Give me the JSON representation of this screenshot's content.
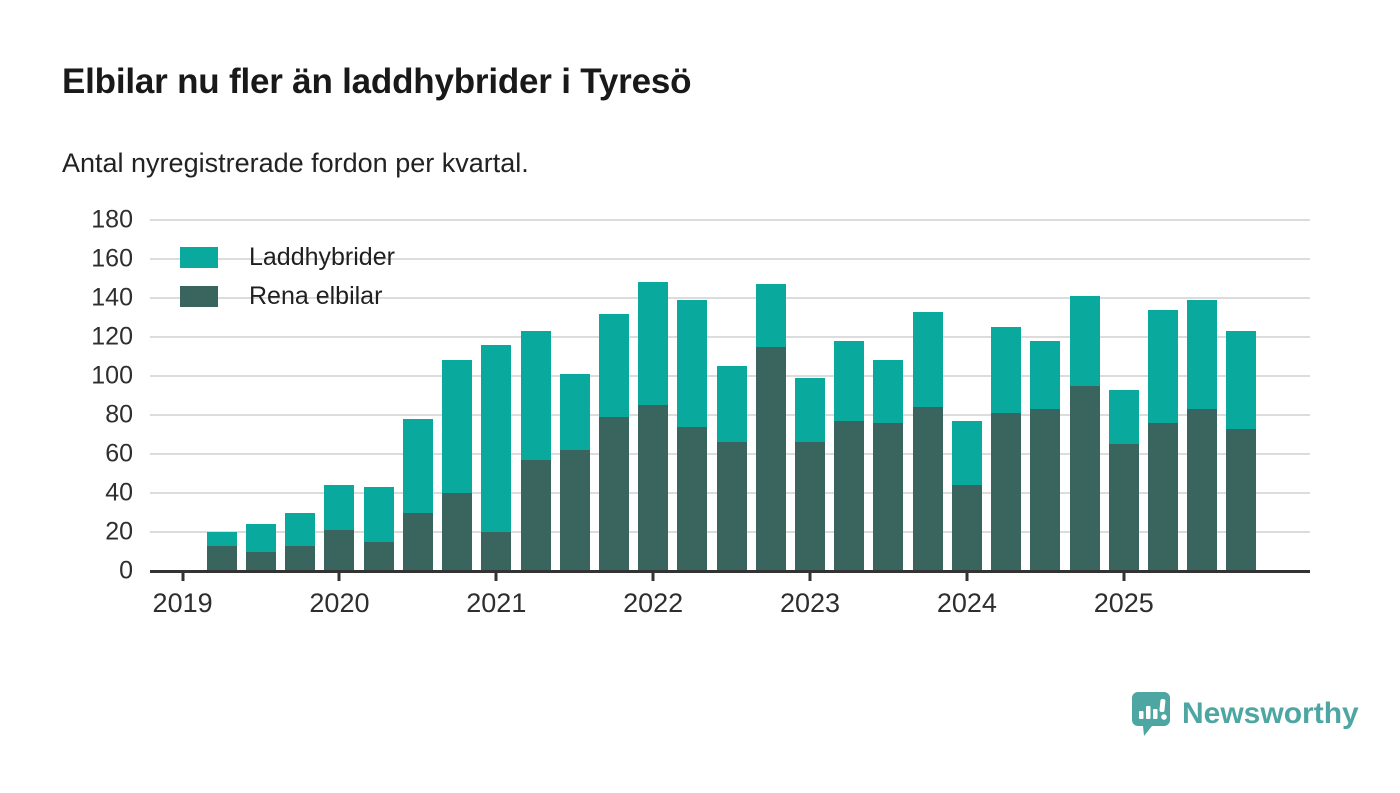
{
  "title": "Elbilar nu fler än laddhybrider i Tyresö",
  "subtitle": "Antal nyregistrerade fordon per kvartal.",
  "colors": {
    "laddhybrider": "#0aa99d",
    "rena_elbilar": "#3a655f",
    "gridline": "#dcdcdc",
    "axis": "#333333",
    "brand_teal": "#4da6a2"
  },
  "legend": [
    {
      "label": "Laddhybrider",
      "color": "#0aa99d"
    },
    {
      "label": "Rena elbilar",
      "color": "#3a655f"
    }
  ],
  "branding": {
    "name": "Newsworthy",
    "icon": "newsworthy-speech-bubble-chart-icon"
  },
  "chart_data": {
    "type": "bar",
    "stacked": true,
    "title": "Elbilar nu fler än laddhybrider i Tyresö",
    "subtitle": "Antal nyregistrerade fordon per kvartal.",
    "ylim": [
      0,
      180
    ],
    "yticks": [
      0,
      20,
      40,
      60,
      80,
      100,
      120,
      140,
      160,
      180
    ],
    "grid": true,
    "legend_position": "top-left-inside",
    "x_unit": "quarter",
    "year_ticks": [
      "2019",
      "2020",
      "2021",
      "2022",
      "2023",
      "2024",
      "2025"
    ],
    "first_quarter": "2019-Q2",
    "categories": [
      "2019-Q2",
      "2019-Q3",
      "2019-Q4",
      "2020-Q1",
      "2020-Q2",
      "2020-Q3",
      "2020-Q4",
      "2021-Q1",
      "2021-Q2",
      "2021-Q3",
      "2021-Q4",
      "2022-Q1",
      "2022-Q2",
      "2022-Q3",
      "2022-Q4",
      "2023-Q1",
      "2023-Q2",
      "2023-Q3",
      "2023-Q4",
      "2024-Q1",
      "2024-Q2",
      "2024-Q3",
      "2024-Q4",
      "2025-Q1",
      "2025-Q2",
      "2025-Q3",
      "2025-Q4"
    ],
    "series": [
      {
        "name": "Laddhybrider",
        "color": "#0aa99d",
        "stack_position": "top",
        "values": [
          7,
          14,
          17,
          23,
          28,
          48,
          68,
          96,
          66,
          39,
          53,
          63,
          65,
          39,
          32,
          33,
          41,
          32,
          49,
          33,
          44,
          35,
          46,
          28,
          58,
          56,
          50
        ]
      },
      {
        "name": "Rena elbilar",
        "color": "#3a655f",
        "stack_position": "bottom",
        "values": [
          13,
          10,
          13,
          21,
          15,
          30,
          40,
          20,
          57,
          62,
          79,
          85,
          74,
          66,
          115,
          66,
          77,
          76,
          84,
          44,
          81,
          83,
          95,
          65,
          76,
          83,
          73
        ]
      }
    ],
    "totals": [
      20,
      24,
      30,
      44,
      43,
      78,
      108,
      116,
      123,
      101,
      132,
      148,
      139,
      105,
      147,
      99,
      118,
      108,
      133,
      77,
      125,
      118,
      141,
      93,
      134,
      139,
      123
    ]
  }
}
